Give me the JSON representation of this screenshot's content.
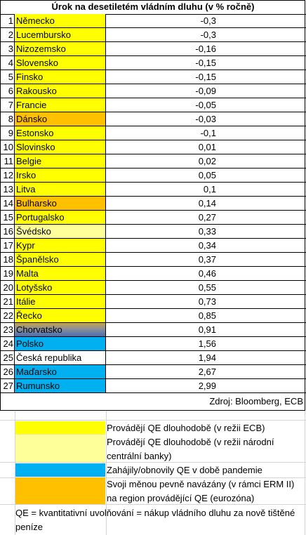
{
  "title": "Úrok na desetiletém vládním dluhu (v % ročně)",
  "colors": {
    "yellow": "#ffff00",
    "light_yellow": "#ffff99",
    "blue": "#00b0f0",
    "orange": "#ffc000",
    "white": "#ffffff"
  },
  "rows": [
    {
      "n": "1",
      "country": "Německo",
      "value": "-0,3",
      "color": "yellow"
    },
    {
      "n": "2",
      "country": "Lucembursko",
      "value": "-0,3",
      "color": "yellow"
    },
    {
      "n": "3",
      "country": "Nizozemsko",
      "value": "-0,16",
      "color": "yellow"
    },
    {
      "n": "4",
      "country": "Slovensko",
      "value": "-0,15",
      "color": "yellow"
    },
    {
      "n": "5",
      "country": "Finsko",
      "value": "-0,15",
      "color": "yellow"
    },
    {
      "n": "6",
      "country": "Rakousko",
      "value": "-0,09",
      "color": "yellow"
    },
    {
      "n": "7",
      "country": "Francie",
      "value": "-0,05",
      "color": "yellow"
    },
    {
      "n": "8",
      "country": "Dánsko",
      "value": "-0,03",
      "color": "orange"
    },
    {
      "n": "9",
      "country": "Estonsko",
      "value": "-0,1",
      "color": "yellow"
    },
    {
      "n": "10",
      "country": "Slovinsko",
      "value": "0,01",
      "color": "yellow"
    },
    {
      "n": "11",
      "country": "Belgie",
      "value": "0,02",
      "color": "yellow"
    },
    {
      "n": "12",
      "country": "Irsko",
      "value": "0,05",
      "color": "yellow"
    },
    {
      "n": "13",
      "country": "Litva",
      "value": "0,1",
      "color": "yellow"
    },
    {
      "n": "14",
      "country": "Bulharsko",
      "value": "0,14",
      "color": "orange"
    },
    {
      "n": "15",
      "country": "Portugalsko",
      "value": "0,27",
      "color": "yellow"
    },
    {
      "n": "16",
      "country": "Švédsko",
      "value": "0,33",
      "color": "light_yellow"
    },
    {
      "n": "17",
      "country": "Kypr",
      "value": "0,34",
      "color": "yellow"
    },
    {
      "n": "18",
      "country": "Španělsko",
      "value": "0,37",
      "color": "yellow"
    },
    {
      "n": "19",
      "country": "Malta",
      "value": "0,46",
      "color": "yellow"
    },
    {
      "n": "20",
      "country": "Lotyšsko",
      "value": "0,55",
      "color": "yellow"
    },
    {
      "n": "21",
      "country": "Itálie",
      "value": "0,73",
      "color": "yellow"
    },
    {
      "n": "22",
      "country": "Řecko",
      "value": "0,85",
      "color": "yellow"
    },
    {
      "n": "23",
      "country": "Chorvatsko",
      "value": "0,91",
      "color": "gradient"
    },
    {
      "n": "24",
      "country": "Polsko",
      "value": "1,56",
      "color": "blue"
    },
    {
      "n": "25",
      "country": "Česká republika",
      "value": "1,94",
      "color": "white"
    },
    {
      "n": "26",
      "country": "Maďarsko",
      "value": "2,67",
      "color": "blue"
    },
    {
      "n": "27",
      "country": "Rumunsko",
      "value": "2,99",
      "color": "blue"
    }
  ],
  "source": "Zdroj: Bloomberg, ECB",
  "legend": [
    {
      "color": "yellow",
      "text": "Provádějí QE dlouhodobě (v režii ECB)"
    },
    {
      "color": "light_yellow",
      "text": "Provádějí QE dlouhodobě (v režii národní centrální banky)"
    },
    {
      "color": "blue",
      "text": "Zahájily/obnovily QE v době pandemie"
    },
    {
      "color": "orange",
      "text": "Svoji měnou pevně navázány (v rámci ERM II) na region provádějící QE (eurozóna)"
    }
  ],
  "note": "QE = kvantitativní uvolňování = nákup vládního dluhu za nově tištěné peníze"
}
